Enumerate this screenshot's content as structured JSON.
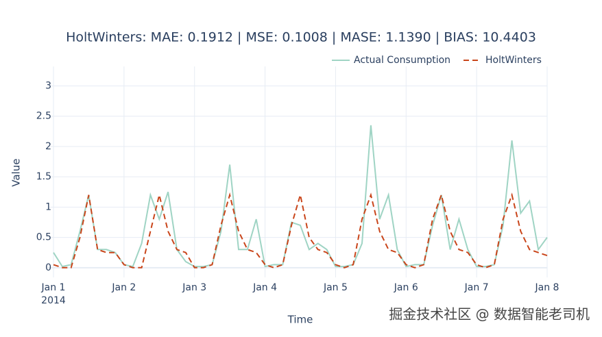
{
  "chart_data": {
    "type": "line",
    "title": "HoltWinters: MAE: 0.1912 | MSE: 0.1008 | MASE: 1.1390 | BIAS: 10.4403",
    "x_label": "Time",
    "y_label": "Value",
    "watermark": "掘金技术社区 @ 数据智能老司机",
    "x": [
      "2014-01-01T00:00",
      "2014-01-01T03:00",
      "2014-01-01T06:00",
      "2014-01-01T09:00",
      "2014-01-01T12:00",
      "2014-01-01T15:00",
      "2014-01-01T18:00",
      "2014-01-01T21:00",
      "2014-01-02T00:00",
      "2014-01-02T03:00",
      "2014-01-02T06:00",
      "2014-01-02T09:00",
      "2014-01-02T12:00",
      "2014-01-02T15:00",
      "2014-01-02T18:00",
      "2014-01-02T21:00",
      "2014-01-03T00:00",
      "2014-01-03T03:00",
      "2014-01-03T06:00",
      "2014-01-03T09:00",
      "2014-01-03T12:00",
      "2014-01-03T15:00",
      "2014-01-03T18:00",
      "2014-01-03T21:00",
      "2014-01-04T00:00",
      "2014-01-04T03:00",
      "2014-01-04T06:00",
      "2014-01-04T09:00",
      "2014-01-04T12:00",
      "2014-01-04T15:00",
      "2014-01-04T18:00",
      "2014-01-04T21:00",
      "2014-01-05T00:00",
      "2014-01-05T03:00",
      "2014-01-05T06:00",
      "2014-01-05T09:00",
      "2014-01-05T12:00",
      "2014-01-05T15:00",
      "2014-01-05T18:00",
      "2014-01-05T21:00",
      "2014-01-06T00:00",
      "2014-01-06T03:00",
      "2014-01-06T06:00",
      "2014-01-06T09:00",
      "2014-01-06T12:00",
      "2014-01-06T15:00",
      "2014-01-06T18:00",
      "2014-01-06T21:00",
      "2014-01-07T00:00",
      "2014-01-07T03:00",
      "2014-01-07T06:00",
      "2014-01-07T09:00",
      "2014-01-07T12:00",
      "2014-01-07T15:00",
      "2014-01-07T18:00",
      "2014-01-07T21:00",
      "2014-01-08T00:00"
    ],
    "series": [
      {
        "name": "Actual Consumption",
        "color": "#9fd4c4",
        "dash": "solid",
        "values": [
          0.25,
          0.02,
          0.05,
          0.6,
          1.2,
          0.3,
          0.3,
          0.25,
          0.05,
          0.02,
          0.4,
          1.2,
          0.8,
          1.25,
          0.3,
          0.1,
          0.02,
          0.02,
          0.05,
          0.6,
          1.7,
          0.3,
          0.3,
          0.8,
          0.02,
          0.05,
          0.05,
          0.75,
          0.7,
          0.3,
          0.4,
          0.3,
          0.02,
          0.02,
          0.05,
          0.4,
          2.35,
          0.8,
          1.2,
          0.3,
          0.02,
          0.05,
          0.05,
          0.7,
          1.2,
          0.3,
          0.8,
          0.3,
          0.02,
          0.02,
          0.05,
          0.7,
          2.1,
          0.9,
          1.1,
          0.3,
          0.5
        ]
      },
      {
        "name": "HoltWinters",
        "color": "#c9451a",
        "dash": "dash",
        "values": [
          0.05,
          0.0,
          0.0,
          0.5,
          1.2,
          0.3,
          0.25,
          0.25,
          0.05,
          0.0,
          0.0,
          0.6,
          1.2,
          0.6,
          0.3,
          0.25,
          0.0,
          0.0,
          0.05,
          0.7,
          1.2,
          0.6,
          0.3,
          0.25,
          0.05,
          0.0,
          0.05,
          0.7,
          1.2,
          0.5,
          0.3,
          0.25,
          0.05,
          0.0,
          0.05,
          0.8,
          1.2,
          0.6,
          0.3,
          0.25,
          0.05,
          0.0,
          0.05,
          0.8,
          1.2,
          0.6,
          0.3,
          0.25,
          0.05,
          0.0,
          0.05,
          0.8,
          1.2,
          0.6,
          0.3,
          0.25,
          0.2
        ]
      }
    ],
    "xlim": [
      "2014-01-01T00:00",
      "2014-01-08T00:00"
    ],
    "xticks": [
      {
        "value": "2014-01-01T00:00",
        "label": "Jan 1\n2014"
      },
      {
        "value": "2014-01-02T00:00",
        "label": "Jan 2"
      },
      {
        "value": "2014-01-03T00:00",
        "label": "Jan 3"
      },
      {
        "value": "2014-01-04T00:00",
        "label": "Jan 4"
      },
      {
        "value": "2014-01-05T00:00",
        "label": "Jan 5"
      },
      {
        "value": "2014-01-06T00:00",
        "label": "Jan 6"
      },
      {
        "value": "2014-01-07T00:00",
        "label": "Jan 7"
      },
      {
        "value": "2014-01-08T00:00",
        "label": "Jan 8"
      }
    ],
    "ylim": [
      -0.16,
      3.32
    ],
    "yticks": [
      0,
      0.5,
      1,
      1.5,
      2,
      2.5,
      3
    ],
    "grid": true,
    "legend": "top-right"
  }
}
